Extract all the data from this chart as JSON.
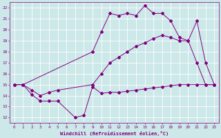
{
  "xlabel": "Windchill (Refroidissement éolien,°C)",
  "xlim": [
    -0.5,
    23.5
  ],
  "ylim": [
    11.5,
    22.5
  ],
  "xticks": [
    0,
    1,
    2,
    3,
    4,
    5,
    6,
    7,
    8,
    9,
    10,
    11,
    12,
    13,
    14,
    15,
    16,
    17,
    18,
    19,
    20,
    21,
    22,
    23
  ],
  "yticks": [
    12,
    13,
    14,
    15,
    16,
    17,
    18,
    19,
    20,
    21,
    22
  ],
  "bg_color": "#cce8e8",
  "line_color": "#800080",
  "grid_color": "#ffffff",
  "line1_x": [
    0,
    1,
    2,
    3,
    4,
    5,
    7,
    8,
    9,
    10,
    11,
    12,
    13,
    14,
    15,
    16,
    17,
    18,
    19,
    20,
    21,
    22,
    23
  ],
  "line1_y": [
    15.0,
    15.0,
    14.1,
    13.5,
    13.5,
    13.5,
    12.0,
    12.2,
    14.8,
    14.2,
    14.3,
    14.3,
    14.4,
    14.5,
    14.6,
    14.7,
    14.8,
    14.9,
    15.0,
    15.0,
    15.0,
    15.0,
    15.0
  ],
  "line2_x": [
    0,
    1,
    9,
    10,
    11,
    12,
    13,
    14,
    15,
    16,
    17,
    18,
    19,
    20,
    21,
    22,
    23
  ],
  "line2_y": [
    15.0,
    15.0,
    18.0,
    19.8,
    21.5,
    21.3,
    21.5,
    21.3,
    22.2,
    21.5,
    21.5,
    20.8,
    19.3,
    19.0,
    20.8,
    17.0,
    15.0
  ],
  "line3_x": [
    0,
    1,
    2,
    3,
    4,
    5,
    9,
    10,
    11,
    12,
    13,
    14,
    15,
    16,
    17,
    18,
    19,
    20,
    21,
    22,
    23
  ],
  "line3_y": [
    15.0,
    15.0,
    14.5,
    14.0,
    14.3,
    14.5,
    15.0,
    16.0,
    17.0,
    17.5,
    18.0,
    18.5,
    18.8,
    19.2,
    19.5,
    19.3,
    19.0,
    19.0,
    17.0,
    15.0,
    15.0
  ]
}
